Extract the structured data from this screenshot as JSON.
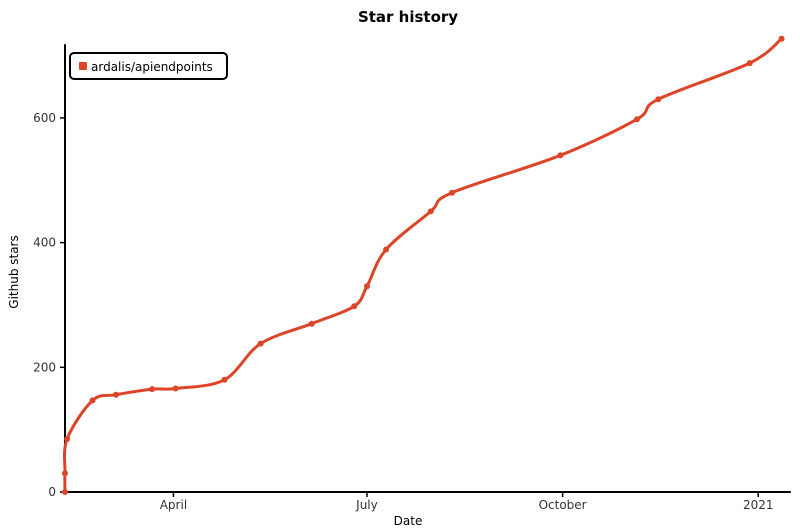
{
  "chart_data": {
    "type": "line",
    "title": "Star history",
    "xlabel": "Date",
    "ylabel": "Github stars",
    "x_ticks": [
      {
        "label": "April",
        "date": "2020-04-01"
      },
      {
        "label": "July",
        "date": "2020-07-01"
      },
      {
        "label": "October",
        "date": "2020-10-01"
      },
      {
        "label": "2021",
        "date": "2021-01-01"
      }
    ],
    "y_ticks": [
      0,
      200,
      400,
      600
    ],
    "xlim": [
      "2020-02-10",
      "2021-01-15"
    ],
    "ylim": [
      0,
      725
    ],
    "grid": false,
    "legend_position": "top-left",
    "series": [
      {
        "name": "ardalis/apiendpoints",
        "color": "#dd4528",
        "points": [
          {
            "x": "2020-02-10",
            "y": 0
          },
          {
            "x": "2020-02-10",
            "y": 30
          },
          {
            "x": "2020-02-11",
            "y": 85
          },
          {
            "x": "2020-02-23",
            "y": 147
          },
          {
            "x": "2020-03-05",
            "y": 156
          },
          {
            "x": "2020-03-22",
            "y": 165
          },
          {
            "x": "2020-04-02",
            "y": 166
          },
          {
            "x": "2020-04-25",
            "y": 180
          },
          {
            "x": "2020-05-12",
            "y": 238
          },
          {
            "x": "2020-06-05",
            "y": 270
          },
          {
            "x": "2020-06-25",
            "y": 298
          },
          {
            "x": "2020-07-01",
            "y": 330
          },
          {
            "x": "2020-07-10",
            "y": 389
          },
          {
            "x": "2020-07-31",
            "y": 450
          },
          {
            "x": "2020-08-10",
            "y": 480
          },
          {
            "x": "2020-09-30",
            "y": 540
          },
          {
            "x": "2020-11-05",
            "y": 598
          },
          {
            "x": "2020-11-15",
            "y": 630
          },
          {
            "x": "2020-12-28",
            "y": 688
          },
          {
            "x": "2021-01-12",
            "y": 727
          }
        ]
      }
    ]
  }
}
